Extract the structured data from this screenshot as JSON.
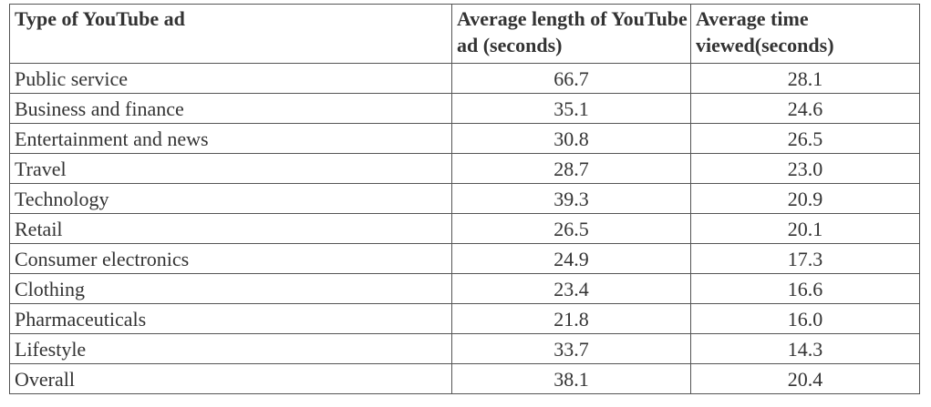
{
  "table": {
    "header": [
      "Type of YouTube ad",
      "Average length of YouTube ad (seconds)",
      "Average time viewed(seconds)"
    ],
    "rows": [
      [
        "Public service",
        "66.7",
        "28.1"
      ],
      [
        "Business and finance",
        "35.1",
        "24.6"
      ],
      [
        "Entertainment and news",
        "30.8",
        "26.5"
      ],
      [
        "Travel",
        "28.7",
        "23.0"
      ],
      [
        "Technology",
        "39.3",
        "20.9"
      ],
      [
        "Retail",
        "26.5",
        "20.1"
      ],
      [
        "Consumer electronics",
        "24.9",
        "17.3"
      ],
      [
        "Clothing",
        "23.4",
        "16.6"
      ],
      [
        "Pharmaceuticals",
        "21.8",
        "16.0"
      ],
      [
        "Lifestyle",
        "33.7",
        "14.3"
      ],
      [
        "Overall",
        "38.1",
        "20.4"
      ]
    ]
  }
}
